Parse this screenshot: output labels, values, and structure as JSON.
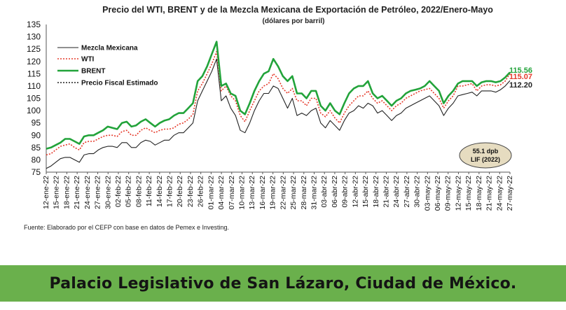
{
  "chart_data": {
    "type": "line",
    "title": "Precio del WTI, BRENT y de la Mezcla Mexicana de Exportación de Petróleo, 2022/Enero-Mayo",
    "subtitle": "(dólares por barril)",
    "ylim": [
      75,
      135
    ],
    "yticks": [
      75,
      80,
      85,
      90,
      95,
      100,
      105,
      110,
      115,
      120,
      125,
      130,
      135
    ],
    "xticks": [
      "12-ene-22",
      "15-ene-22",
      "18-ene-22",
      "21-ene-22",
      "24-ene-22",
      "27-ene-22",
      "30-ene-22",
      "02-feb-22",
      "05-feb-22",
      "08-feb-22",
      "11-feb-22",
      "14-feb-22",
      "17-feb-22",
      "20-feb-22",
      "23-feb-22",
      "26-feb-22",
      "01-mar-22",
      "04-mar-22",
      "07-mar-22",
      "10-mar-22",
      "13-mar-22",
      "16-mar-22",
      "19-mar-22",
      "22-mar-22",
      "25-mar-22",
      "28-mar-22",
      "31-mar-22",
      "03-abr-22",
      "06-abr-22",
      "09-abr-22",
      "12-abr-22",
      "15-abr-22",
      "18-abr-22",
      "21-abr-22",
      "24-abr-22",
      "27-abr-22",
      "30-abr-22",
      "03-may-22",
      "06-may-22",
      "09-may-22",
      "12-may-22",
      "15-may-22",
      "18-may-22",
      "21-may-22",
      "24-may-22",
      "27-may-22"
    ],
    "legend_position": "top-left",
    "series": [
      {
        "name": "Mezcla Mexicana",
        "color": "#222222",
        "style": "solid",
        "points": [
          [
            0,
            76.5
          ],
          [
            1,
            77.5
          ],
          [
            2,
            79
          ],
          [
            3,
            80.5
          ],
          [
            4,
            81
          ],
          [
            5,
            81
          ],
          [
            6,
            80
          ],
          [
            7,
            79
          ],
          [
            8,
            82
          ],
          [
            9,
            82.5
          ],
          [
            10,
            82.5
          ],
          [
            11,
            84
          ],
          [
            12,
            85
          ],
          [
            13,
            85.5
          ],
          [
            14,
            85.5
          ],
          [
            15,
            85
          ],
          [
            16,
            87
          ],
          [
            17,
            87
          ],
          [
            18,
            85
          ],
          [
            19,
            85
          ],
          [
            20,
            87
          ],
          [
            21,
            88
          ],
          [
            22,
            87.5
          ],
          [
            23,
            86
          ],
          [
            24,
            87
          ],
          [
            25,
            88
          ],
          [
            26,
            88
          ],
          [
            27,
            90
          ],
          [
            28,
            91
          ],
          [
            29,
            91
          ],
          [
            30,
            93
          ],
          [
            31,
            95
          ],
          [
            32,
            104
          ],
          [
            33,
            108
          ],
          [
            34,
            112
          ],
          [
            35,
            116
          ],
          [
            36,
            121
          ],
          [
            37,
            104
          ],
          [
            38,
            106
          ],
          [
            39,
            101
          ],
          [
            40,
            98
          ],
          [
            41,
            92
          ],
          [
            42,
            91
          ],
          [
            43,
            95
          ],
          [
            44,
            100
          ],
          [
            45,
            104
          ],
          [
            46,
            107
          ],
          [
            47,
            107
          ],
          [
            48,
            110
          ],
          [
            49,
            109
          ],
          [
            50,
            105
          ],
          [
            51,
            101
          ],
          [
            52,
            105
          ],
          [
            53,
            98
          ],
          [
            54,
            99
          ],
          [
            55,
            98
          ],
          [
            56,
            100
          ],
          [
            57,
            101
          ],
          [
            58,
            95
          ],
          [
            59,
            93
          ],
          [
            60,
            96
          ],
          [
            61,
            94
          ],
          [
            62,
            92
          ],
          [
            63,
            96
          ],
          [
            64,
            99
          ],
          [
            65,
            100
          ],
          [
            66,
            102
          ],
          [
            67,
            101
          ],
          [
            68,
            103
          ],
          [
            69,
            102
          ],
          [
            70,
            99
          ],
          [
            71,
            100
          ],
          [
            72,
            98
          ],
          [
            73,
            96
          ],
          [
            74,
            98
          ],
          [
            75,
            99
          ],
          [
            76,
            101
          ],
          [
            77,
            102
          ],
          [
            78,
            103
          ],
          [
            79,
            104
          ],
          [
            80,
            105
          ],
          [
            81,
            106
          ],
          [
            82,
            104
          ],
          [
            83,
            102
          ],
          [
            84,
            98
          ],
          [
            85,
            101
          ],
          [
            86,
            103
          ],
          [
            87,
            106
          ],
          [
            88,
            106.5
          ],
          [
            89,
            107
          ],
          [
            90,
            107.5
          ],
          [
            91,
            106
          ],
          [
            92,
            108
          ],
          [
            93,
            108
          ],
          [
            94,
            108
          ],
          [
            95,
            107.5
          ],
          [
            96,
            108.5
          ],
          [
            97,
            110
          ],
          [
            98,
            112.2
          ]
        ]
      },
      {
        "name": "WTI",
        "color": "#e53b2c",
        "style": "dotted",
        "points": [
          [
            0,
            82
          ],
          [
            1,
            82.5
          ],
          [
            2,
            84
          ],
          [
            3,
            85.5
          ],
          [
            4,
            86
          ],
          [
            5,
            86.5
          ],
          [
            6,
            85
          ],
          [
            7,
            84
          ],
          [
            8,
            87
          ],
          [
            9,
            87.5
          ],
          [
            10,
            87.5
          ],
          [
            11,
            88.5
          ],
          [
            12,
            89.5
          ],
          [
            13,
            90
          ],
          [
            14,
            90
          ],
          [
            15,
            89.5
          ],
          [
            16,
            91.5
          ],
          [
            17,
            92
          ],
          [
            18,
            90
          ],
          [
            19,
            90
          ],
          [
            20,
            92
          ],
          [
            21,
            93
          ],
          [
            22,
            92
          ],
          [
            23,
            91
          ],
          [
            24,
            92
          ],
          [
            25,
            92.5
          ],
          [
            26,
            92.5
          ],
          [
            27,
            93
          ],
          [
            28,
            94.5
          ],
          [
            29,
            95
          ],
          [
            30,
            96.5
          ],
          [
            31,
            98.5
          ],
          [
            32,
            108
          ],
          [
            33,
            111
          ],
          [
            34,
            115
          ],
          [
            35,
            119
          ],
          [
            36,
            124
          ],
          [
            37,
            108
          ],
          [
            38,
            110
          ],
          [
            39,
            106
          ],
          [
            40,
            104
          ],
          [
            41,
            98
          ],
          [
            42,
            95.5
          ],
          [
            43,
            100
          ],
          [
            44,
            104
          ],
          [
            45,
            108
          ],
          [
            46,
            110
          ],
          [
            47,
            111
          ],
          [
            48,
            115
          ],
          [
            49,
            113
          ],
          [
            50,
            109
          ],
          [
            51,
            107
          ],
          [
            52,
            109
          ],
          [
            53,
            104
          ],
          [
            54,
            104
          ],
          [
            55,
            102
          ],
          [
            56,
            105
          ],
          [
            57,
            105
          ],
          [
            58,
            99
          ],
          [
            59,
            97.5
          ],
          [
            60,
            100
          ],
          [
            61,
            97
          ],
          [
            62,
            95
          ],
          [
            63,
            99
          ],
          [
            64,
            102
          ],
          [
            65,
            104
          ],
          [
            66,
            106
          ],
          [
            67,
            106
          ],
          [
            68,
            108
          ],
          [
            69,
            105
          ],
          [
            70,
            103
          ],
          [
            71,
            104
          ],
          [
            72,
            102
          ],
          [
            73,
            100
          ],
          [
            74,
            102
          ],
          [
            75,
            103
          ],
          [
            76,
            105
          ],
          [
            77,
            106
          ],
          [
            78,
            107
          ],
          [
            79,
            108
          ],
          [
            80,
            108.5
          ],
          [
            81,
            109
          ],
          [
            82,
            107
          ],
          [
            83,
            105
          ],
          [
            84,
            101
          ],
          [
            85,
            104
          ],
          [
            86,
            106
          ],
          [
            87,
            110
          ],
          [
            88,
            110
          ],
          [
            89,
            110.5
          ],
          [
            90,
            111
          ],
          [
            91,
            108
          ],
          [
            92,
            110
          ],
          [
            93,
            110.5
          ],
          [
            94,
            110.5
          ],
          [
            95,
            110
          ],
          [
            96,
            110.5
          ],
          [
            97,
            112
          ],
          [
            98,
            115.07
          ]
        ]
      },
      {
        "name": "BRENT",
        "color": "#22a33a",
        "style": "solid",
        "points": [
          [
            0,
            84.5
          ],
          [
            1,
            85
          ],
          [
            2,
            86
          ],
          [
            3,
            87
          ],
          [
            4,
            88.5
          ],
          [
            5,
            88.5
          ],
          [
            6,
            87.5
          ],
          [
            7,
            86.5
          ],
          [
            8,
            89.5
          ],
          [
            9,
            90
          ],
          [
            10,
            90
          ],
          [
            11,
            91
          ],
          [
            12,
            92
          ],
          [
            13,
            93.5
          ],
          [
            14,
            93
          ],
          [
            15,
            92.5
          ],
          [
            16,
            95
          ],
          [
            17,
            95.5
          ],
          [
            18,
            93.5
          ],
          [
            19,
            94
          ],
          [
            20,
            95.5
          ],
          [
            21,
            96.5
          ],
          [
            22,
            95
          ],
          [
            23,
            93.5
          ],
          [
            24,
            95
          ],
          [
            25,
            96
          ],
          [
            26,
            96.5
          ],
          [
            27,
            98
          ],
          [
            28,
            99
          ],
          [
            29,
            99
          ],
          [
            30,
            101
          ],
          [
            31,
            103
          ],
          [
            32,
            112
          ],
          [
            33,
            114
          ],
          [
            34,
            118
          ],
          [
            35,
            123
          ],
          [
            36,
            128
          ],
          [
            37,
            110
          ],
          [
            38,
            111
          ],
          [
            39,
            107
          ],
          [
            40,
            106
          ],
          [
            41,
            100
          ],
          [
            42,
            98.5
          ],
          [
            43,
            103
          ],
          [
            44,
            108
          ],
          [
            45,
            112
          ],
          [
            46,
            115
          ],
          [
            47,
            116
          ],
          [
            48,
            121
          ],
          [
            49,
            118
          ],
          [
            50,
            114
          ],
          [
            51,
            112
          ],
          [
            52,
            114
          ],
          [
            53,
            107
          ],
          [
            54,
            107
          ],
          [
            55,
            105
          ],
          [
            56,
            108
          ],
          [
            57,
            108
          ],
          [
            58,
            102
          ],
          [
            59,
            100
          ],
          [
            60,
            103
          ],
          [
            61,
            100
          ],
          [
            62,
            98.5
          ],
          [
            63,
            103
          ],
          [
            64,
            107
          ],
          [
            65,
            109
          ],
          [
            66,
            110
          ],
          [
            67,
            110
          ],
          [
            68,
            112
          ],
          [
            69,
            107
          ],
          [
            70,
            105
          ],
          [
            71,
            106
          ],
          [
            72,
            104
          ],
          [
            73,
            102
          ],
          [
            74,
            104
          ],
          [
            75,
            105
          ],
          [
            76,
            107
          ],
          [
            77,
            108
          ],
          [
            78,
            108.5
          ],
          [
            79,
            109
          ],
          [
            80,
            110
          ],
          [
            81,
            112
          ],
          [
            82,
            110
          ],
          [
            83,
            108
          ],
          [
            84,
            103
          ],
          [
            85,
            106
          ],
          [
            86,
            108
          ],
          [
            87,
            111
          ],
          [
            88,
            112
          ],
          [
            89,
            112
          ],
          [
            90,
            112
          ],
          [
            91,
            110
          ],
          [
            92,
            111.5
          ],
          [
            93,
            112
          ],
          [
            94,
            112
          ],
          [
            95,
            111.5
          ],
          [
            96,
            112
          ],
          [
            97,
            113.5
          ],
          [
            98,
            115.56
          ]
        ]
      },
      {
        "name": "Precio Fiscal Estimado",
        "color": "#222222",
        "style": "dotted",
        "points": []
      }
    ],
    "end_labels": [
      {
        "text": "115.56",
        "color": "#22a33a"
      },
      {
        "text": "115.07",
        "color": "#e53b2c"
      },
      {
        "text": "112.20",
        "color": "#222222"
      }
    ],
    "annotation": {
      "line1": "55.1 dpb",
      "line2": "LIF (2022)"
    }
  },
  "source_text": "Fuente: Elaborado por el CEFP con base en datos de Pemex e Investing.",
  "footer_text": "Palacio Legislativo de San Lázaro, Ciudad de México."
}
